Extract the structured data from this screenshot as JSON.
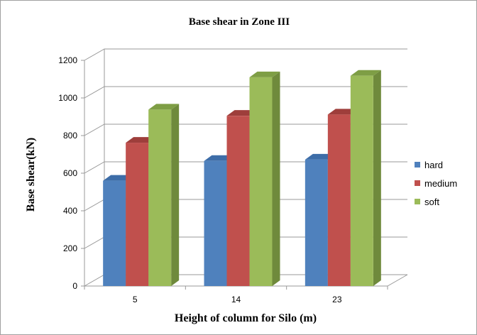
{
  "chart_data": {
    "type": "bar",
    "title": "Base shear in Zone  III",
    "xlabel": "Height of column for Silo (m)",
    "ylabel": "Base shear(kN)",
    "categories": [
      "5",
      "14",
      "23"
    ],
    "series": [
      {
        "name": "hard",
        "values": [
          560,
          665,
          672
        ],
        "color": "#4F81BD",
        "side": "#3A6398",
        "top": "#3D6DA8"
      },
      {
        "name": "medium",
        "values": [
          762,
          905,
          912
        ],
        "color": "#C0504D",
        "side": "#8E3836",
        "top": "#9E3E3B"
      },
      {
        "name": "soft",
        "values": [
          938,
          1110,
          1118
        ],
        "color": "#9BBB59",
        "side": "#6F8A3C",
        "top": "#7E9E45"
      }
    ],
    "ylim": [
      0,
      1200
    ],
    "yticks": [
      "0",
      "200",
      "400",
      "600",
      "800",
      "1000",
      "1200"
    ],
    "grid": true,
    "legend_position": "right"
  }
}
